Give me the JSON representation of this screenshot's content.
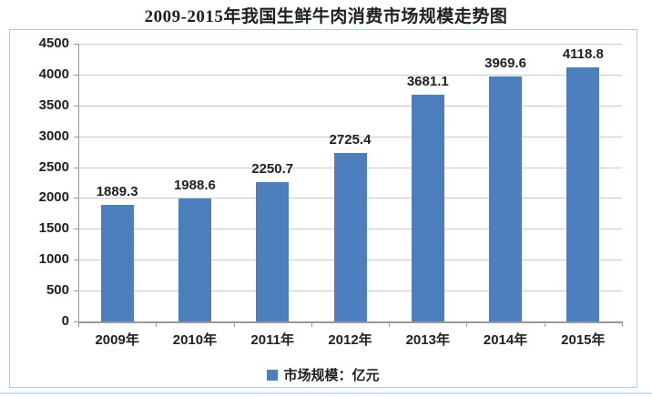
{
  "title": "2009-2015年我国生鲜牛肉消费市场规模走势图",
  "legend": {
    "marker": "blue-square-icon",
    "label": "市场规模：亿元"
  },
  "chart_data": {
    "type": "bar",
    "title": "2009-2015年我国生鲜牛肉消费市场规模走势图",
    "categories": [
      "2009年",
      "2010年",
      "2011年",
      "2012年",
      "2013年",
      "2014年",
      "2015年"
    ],
    "series": [
      {
        "name": "市场规模：亿元",
        "values": [
          1889.3,
          1988.6,
          2250.7,
          2725.4,
          3681.1,
          3969.6,
          4118.8
        ]
      }
    ],
    "xlabel": "",
    "ylabel": "",
    "ylim": [
      0,
      4500
    ],
    "ytick_step": 500,
    "grid": "horizontal",
    "legend_position": "bottom",
    "data_labels_shown": true
  },
  "colors": {
    "bar": "#4d7ebe",
    "grid": "#c8c8c8",
    "axis": "#999999",
    "text": "#1f1f1f",
    "frame_border": "#b3c8de",
    "bottom_rule": "#cfe0f0"
  }
}
